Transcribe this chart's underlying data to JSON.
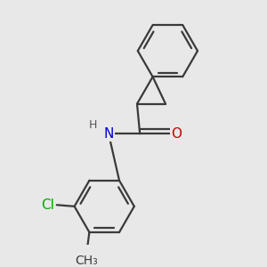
{
  "background_color": "#e8e8e8",
  "bond_color": "#3a3a3a",
  "bond_width": 1.6,
  "atom_colors": {
    "N": "#0000cc",
    "O": "#cc0000",
    "Cl": "#00aa00",
    "H": "#555555",
    "C": "#3a3a3a"
  },
  "font_size": 11
}
